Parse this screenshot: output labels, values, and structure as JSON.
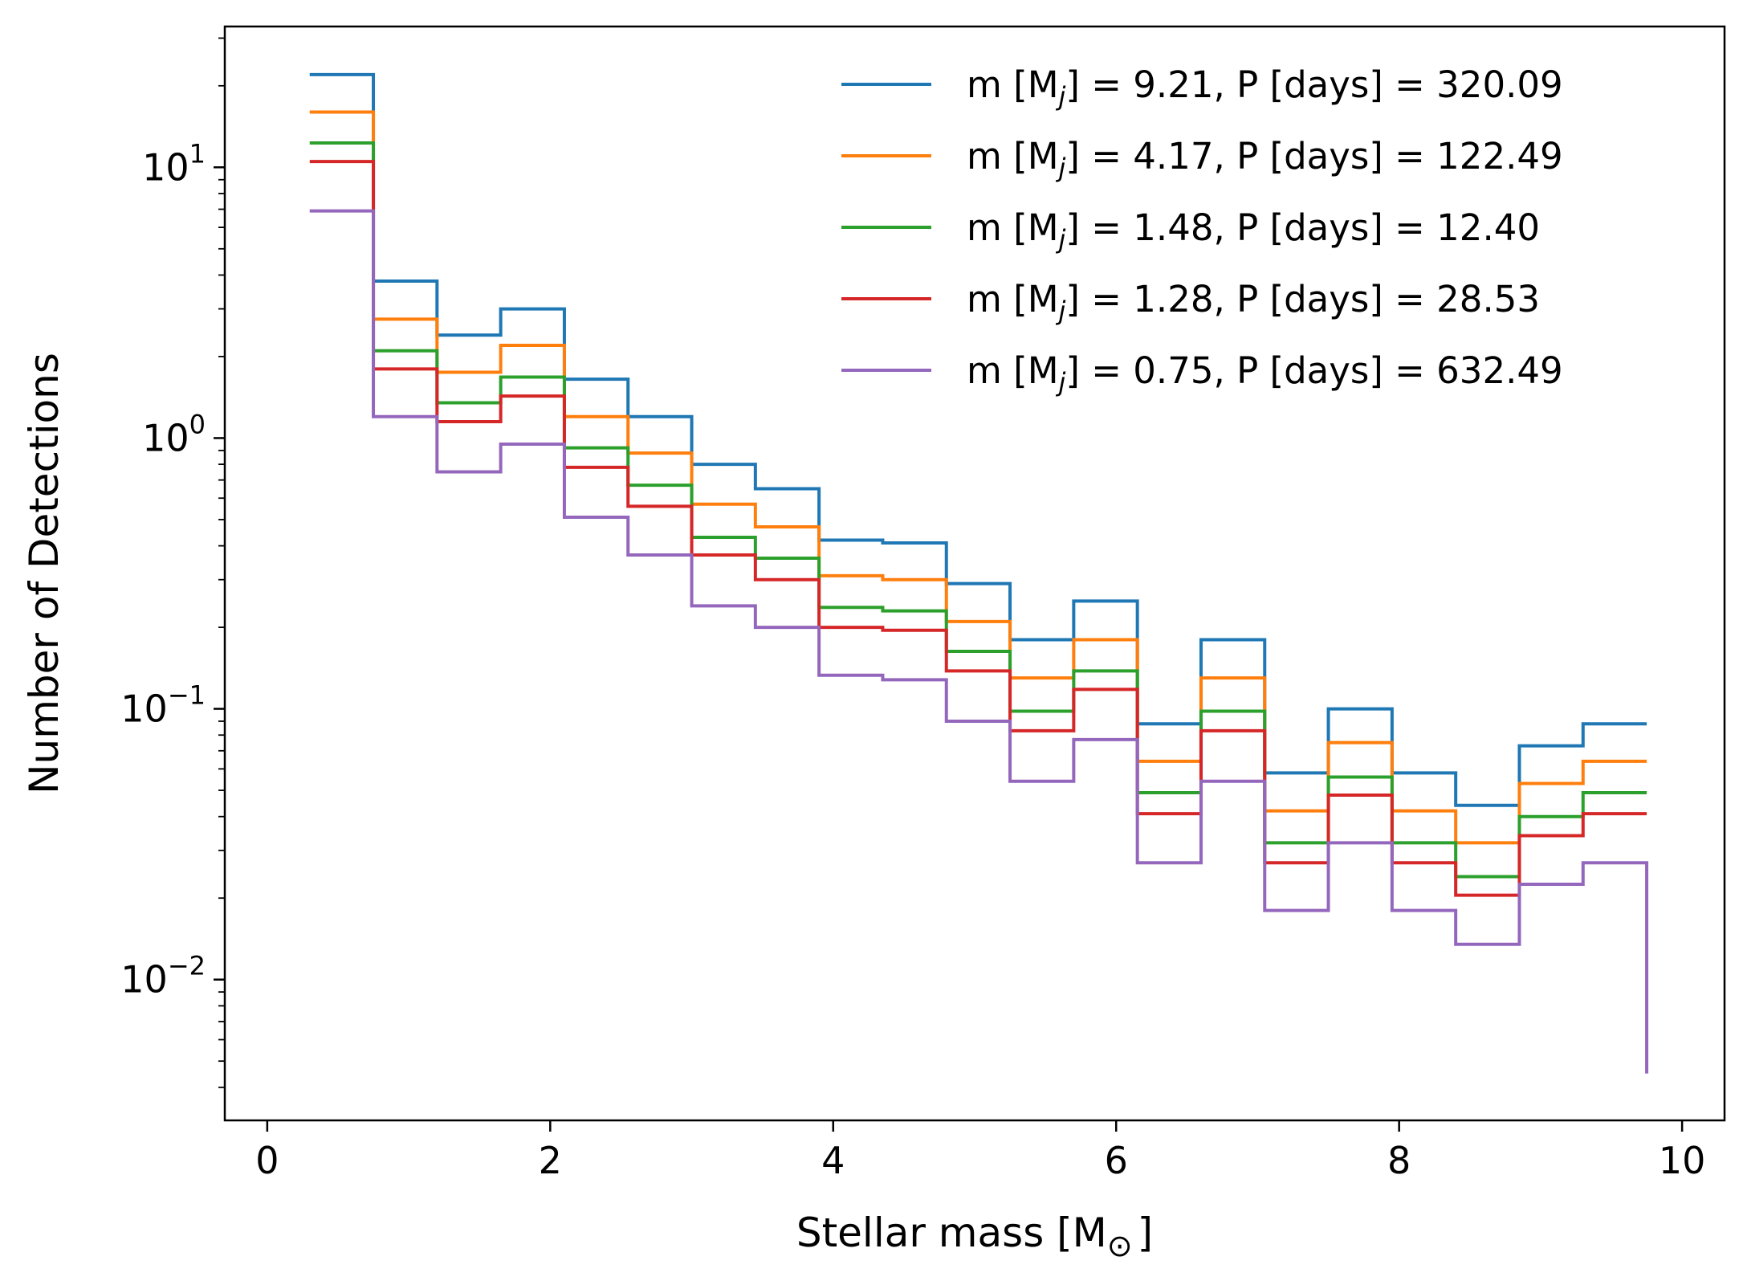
{
  "chart_data": {
    "type": "line",
    "drawstyle": "steps",
    "title": "",
    "xlabel": "Stellar mass [M",
    "xlabel_symbol": "⊙",
    "xlabel_suffix": "]",
    "ylabel": "Number of Detections",
    "xlim": [
      -0.3,
      10.3
    ],
    "ylim_log10": [
      -2.52,
      1.52
    ],
    "yscale": "log",
    "grid": false,
    "legend_placement": "top-right",
    "x_ticks": [
      0,
      2,
      4,
      6,
      8,
      10
    ],
    "x_tick_labels": [
      "0",
      "2",
      "4",
      "6",
      "8",
      "10"
    ],
    "y_ticks_log10": [
      1,
      0,
      -1,
      -2
    ],
    "y_tick_bases": [
      "10",
      "10",
      "10",
      "10"
    ],
    "y_tick_exponents": [
      "1",
      "0",
      "−1",
      "−2"
    ],
    "bin_edges": [
      0.3,
      0.75,
      1.2,
      1.65,
      2.1,
      2.55,
      3.0,
      3.45,
      3.9,
      4.35,
      4.8,
      5.25,
      5.7,
      6.15,
      6.6,
      7.05,
      7.5,
      7.95,
      8.4,
      8.85,
      9.3,
      9.75
    ],
    "series": [
      {
        "legend_prefix": "m [M",
        "legend_sub": "j",
        "legend_suffix": "] = 9.21, P [days] = 320.09",
        "color": "#1f77b4",
        "values": [
          22,
          3.8,
          2.4,
          3.0,
          1.65,
          1.2,
          0.8,
          0.65,
          0.42,
          0.41,
          0.29,
          0.18,
          0.25,
          0.088,
          0.18,
          0.058,
          0.1,
          0.058,
          0.044,
          0.073,
          0.088
        ]
      },
      {
        "legend_prefix": "m [M",
        "legend_sub": "j",
        "legend_suffix": "] = 4.17, P [days] = 122.49",
        "color": "#ff7f0e",
        "values": [
          16,
          2.75,
          1.75,
          2.2,
          1.2,
          0.88,
          0.57,
          0.47,
          0.31,
          0.3,
          0.21,
          0.13,
          0.18,
          0.064,
          0.13,
          0.042,
          0.075,
          0.042,
          0.032,
          0.053,
          0.064
        ]
      },
      {
        "legend_prefix": "m [M",
        "legend_sub": "j",
        "legend_suffix": "] = 1.48, P [days] = 12.40",
        "color": "#2ca02c",
        "values": [
          12.3,
          2.1,
          1.35,
          1.68,
          0.92,
          0.67,
          0.43,
          0.36,
          0.237,
          0.23,
          0.163,
          0.098,
          0.138,
          0.049,
          0.098,
          0.032,
          0.056,
          0.032,
          0.024,
          0.04,
          0.049
        ]
      },
      {
        "legend_prefix": "m [M",
        "legend_sub": "j",
        "legend_suffix": "] = 1.28, P [days] = 28.53",
        "color": "#d62728",
        "values": [
          10.5,
          1.8,
          1.15,
          1.43,
          0.78,
          0.56,
          0.37,
          0.3,
          0.2,
          0.195,
          0.138,
          0.083,
          0.118,
          0.041,
          0.083,
          0.027,
          0.048,
          0.027,
          0.0205,
          0.034,
          0.041
        ]
      },
      {
        "legend_prefix": "m [M",
        "legend_sub": "j",
        "legend_suffix": "] = 0.75, P [days] = 632.49",
        "color": "#9467bd",
        "values": [
          6.9,
          1.2,
          0.75,
          0.95,
          0.51,
          0.37,
          0.24,
          0.2,
          0.133,
          0.128,
          0.09,
          0.054,
          0.077,
          0.027,
          0.054,
          0.018,
          0.032,
          0.018,
          0.0135,
          0.0225,
          0.027
        ],
        "end_value": 0.0045
      }
    ]
  }
}
